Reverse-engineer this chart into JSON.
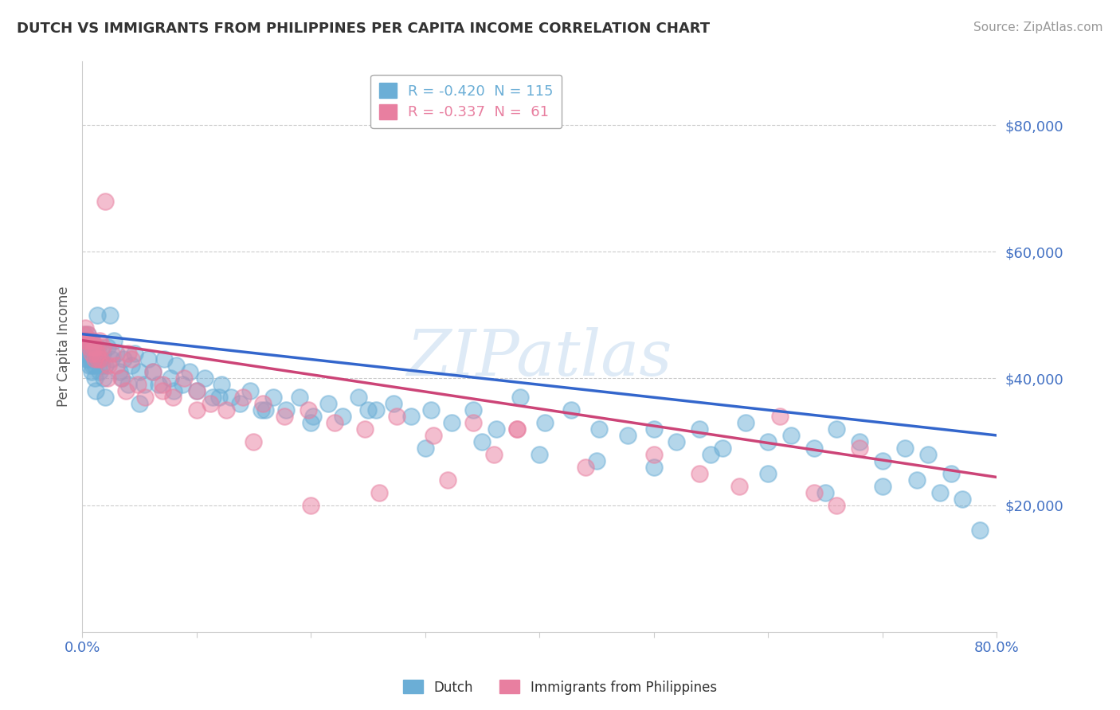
{
  "title": "DUTCH VS IMMIGRANTS FROM PHILIPPINES PER CAPITA INCOME CORRELATION CHART",
  "source": "Source: ZipAtlas.com",
  "ylabel": "Per Capita Income",
  "xlim": [
    0.0,
    0.8
  ],
  "ylim": [
    0,
    90000
  ],
  "yticks": [
    20000,
    40000,
    60000,
    80000
  ],
  "ytick_labels": [
    "$20,000",
    "$40,000",
    "$60,000",
    "$80,000"
  ],
  "legend_entries": [
    {
      "label": "R = -0.420  N = 115",
      "color": "#6baed6"
    },
    {
      "label": "R = -0.337  N =  61",
      "color": "#e87fa0"
    }
  ],
  "dutch_color": "#6baed6",
  "phil_color": "#e87fa0",
  "dutch_line_color": "#3366cc",
  "phil_line_color": "#cc4477",
  "background_color": "#ffffff",
  "grid_color": "#cccccc",
  "dutch_scatter": {
    "x": [
      0.001,
      0.002,
      0.002,
      0.003,
      0.003,
      0.004,
      0.004,
      0.005,
      0.005,
      0.006,
      0.006,
      0.007,
      0.007,
      0.008,
      0.008,
      0.009,
      0.009,
      0.01,
      0.01,
      0.011,
      0.011,
      0.012,
      0.013,
      0.013,
      0.014,
      0.015,
      0.016,
      0.017,
      0.018,
      0.019,
      0.02,
      0.022,
      0.024,
      0.026,
      0.028,
      0.03,
      0.033,
      0.036,
      0.04,
      0.043,
      0.046,
      0.05,
      0.054,
      0.058,
      0.062,
      0.067,
      0.072,
      0.077,
      0.082,
      0.088,
      0.094,
      0.1,
      0.107,
      0.114,
      0.122,
      0.13,
      0.138,
      0.147,
      0.157,
      0.167,
      0.178,
      0.19,
      0.202,
      0.215,
      0.228,
      0.242,
      0.257,
      0.272,
      0.288,
      0.305,
      0.323,
      0.342,
      0.362,
      0.383,
      0.405,
      0.428,
      0.452,
      0.477,
      0.5,
      0.52,
      0.54,
      0.56,
      0.58,
      0.6,
      0.62,
      0.64,
      0.66,
      0.68,
      0.7,
      0.72,
      0.74,
      0.76,
      0.005,
      0.012,
      0.02,
      0.035,
      0.05,
      0.08,
      0.12,
      0.16,
      0.2,
      0.25,
      0.3,
      0.35,
      0.4,
      0.45,
      0.5,
      0.55,
      0.6,
      0.65,
      0.7,
      0.73,
      0.75,
      0.77,
      0.785
    ],
    "y": [
      46000,
      44000,
      47000,
      45000,
      43000,
      46000,
      44000,
      47000,
      43000,
      45000,
      42000,
      44000,
      43000,
      46000,
      41000,
      44000,
      42000,
      45000,
      43000,
      40000,
      42000,
      44000,
      50000,
      43000,
      45000,
      41000,
      43000,
      42000,
      44000,
      40000,
      42000,
      45000,
      50000,
      43000,
      46000,
      44000,
      41000,
      43000,
      39000,
      42000,
      44000,
      41000,
      39000,
      43000,
      41000,
      39000,
      43000,
      40000,
      42000,
      39000,
      41000,
      38000,
      40000,
      37000,
      39000,
      37000,
      36000,
      38000,
      35000,
      37000,
      35000,
      37000,
      34000,
      36000,
      34000,
      37000,
      35000,
      36000,
      34000,
      35000,
      33000,
      35000,
      32000,
      37000,
      33000,
      35000,
      32000,
      31000,
      32000,
      30000,
      32000,
      29000,
      33000,
      30000,
      31000,
      29000,
      32000,
      30000,
      27000,
      29000,
      28000,
      25000,
      46000,
      38000,
      37000,
      40000,
      36000,
      38000,
      37000,
      35000,
      33000,
      35000,
      29000,
      30000,
      28000,
      27000,
      26000,
      28000,
      25000,
      22000,
      23000,
      24000,
      22000,
      21000,
      16000
    ]
  },
  "phil_scatter": {
    "x": [
      0.001,
      0.002,
      0.003,
      0.004,
      0.005,
      0.006,
      0.007,
      0.008,
      0.009,
      0.01,
      0.011,
      0.012,
      0.013,
      0.014,
      0.015,
      0.016,
      0.018,
      0.02,
      0.023,
      0.026,
      0.03,
      0.034,
      0.038,
      0.043,
      0.049,
      0.055,
      0.062,
      0.07,
      0.079,
      0.089,
      0.1,
      0.112,
      0.126,
      0.141,
      0.158,
      0.177,
      0.198,
      0.221,
      0.247,
      0.275,
      0.307,
      0.342,
      0.38,
      0.022,
      0.04,
      0.07,
      0.1,
      0.15,
      0.2,
      0.26,
      0.32,
      0.38,
      0.44,
      0.5,
      0.54,
      0.575,
      0.61,
      0.64,
      0.66,
      0.68,
      0.36
    ],
    "y": [
      47000,
      46000,
      48000,
      46000,
      47000,
      45000,
      46000,
      44000,
      46000,
      45000,
      43000,
      45000,
      44000,
      43000,
      46000,
      43000,
      45000,
      68000,
      42000,
      44000,
      42000,
      40000,
      38000,
      43000,
      39000,
      37000,
      41000,
      39000,
      37000,
      40000,
      38000,
      36000,
      35000,
      37000,
      36000,
      34000,
      35000,
      33000,
      32000,
      34000,
      31000,
      33000,
      32000,
      40000,
      44000,
      38000,
      35000,
      30000,
      20000,
      22000,
      24000,
      32000,
      26000,
      28000,
      25000,
      23000,
      34000,
      22000,
      20000,
      29000,
      28000
    ]
  },
  "reg_dutch": {
    "slope": -20000,
    "intercept": 47000
  },
  "reg_phil": {
    "slope": -27000,
    "intercept": 46000
  }
}
